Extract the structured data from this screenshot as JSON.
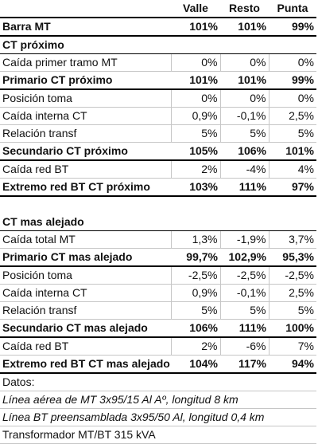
{
  "columns": [
    "",
    "Valle",
    "Resto",
    "Punta"
  ],
  "rows": [
    {
      "label": "Barra MT",
      "values": [
        "101%",
        "101%",
        "99%"
      ],
      "style": "bold"
    },
    {
      "label": "CT próximo",
      "values": [
        "",
        "",
        ""
      ],
      "style": "section"
    },
    {
      "label": "Caída primer tramo MT",
      "values": [
        "0%",
        "0%",
        "0%"
      ],
      "style": "normal"
    },
    {
      "label": "Primario CT próximo",
      "values": [
        "101%",
        "101%",
        "99%"
      ],
      "style": "bold"
    },
    {
      "label": "Posición toma",
      "values": [
        "0%",
        "0%",
        "0%"
      ],
      "style": "normal"
    },
    {
      "label": "Caída interna CT",
      "values": [
        "0,9%",
        "-0,1%",
        "2,5%"
      ],
      "style": "normal"
    },
    {
      "label": "Relación transf",
      "values": [
        "5%",
        "5%",
        "5%"
      ],
      "style": "normal"
    },
    {
      "label": "Secundario CT próximo",
      "values": [
        "105%",
        "106%",
        "101%"
      ],
      "style": "bold"
    },
    {
      "label": "Caída red BT",
      "values": [
        "2%",
        "-4%",
        "4%"
      ],
      "style": "normal"
    },
    {
      "label": "Extremo red BT CT próximo",
      "values": [
        "103%",
        "111%",
        "97%"
      ],
      "style": "bold"
    },
    {
      "label": "",
      "values": [
        "",
        "",
        ""
      ],
      "style": "blank"
    },
    {
      "label": "CT mas alejado",
      "values": [
        "",
        "",
        ""
      ],
      "style": "section"
    },
    {
      "label": "Caída total MT",
      "values": [
        "1,3%",
        "-1,9%",
        "3,7%"
      ],
      "style": "normal"
    },
    {
      "label": "Primario CT mas alejado",
      "values": [
        "99,7%",
        "102,9%",
        "95,3%"
      ],
      "style": "bold"
    },
    {
      "label": "Posición toma",
      "values": [
        "-2,5%",
        "-2,5%",
        "-2,5%"
      ],
      "style": "normal"
    },
    {
      "label": "Caída interna CT",
      "values": [
        "0,9%",
        "-0,1%",
        "2,5%"
      ],
      "style": "normal"
    },
    {
      "label": "Relación transf",
      "values": [
        "5%",
        "5%",
        "5%"
      ],
      "style": "normal"
    },
    {
      "label": "Secundario CT mas alejado",
      "values": [
        "106%",
        "111%",
        "100%"
      ],
      "style": "bold"
    },
    {
      "label": "Caída red BT",
      "values": [
        "2%",
        "-6%",
        "7%"
      ],
      "style": "normal"
    },
    {
      "label": "Extremo red BT CT mas alejado",
      "values": [
        "104%",
        "117%",
        "94%"
      ],
      "style": "bold"
    }
  ],
  "notes": {
    "heading": "Datos:",
    "lines": [
      "Línea aérea de MT 3x95/15 Al Aº, longitud 8 km",
      "Línea BT preensamblada 3x95/50 Al, longitud 0,4 km",
      "Transformador MT/BT 315 kVA"
    ]
  }
}
